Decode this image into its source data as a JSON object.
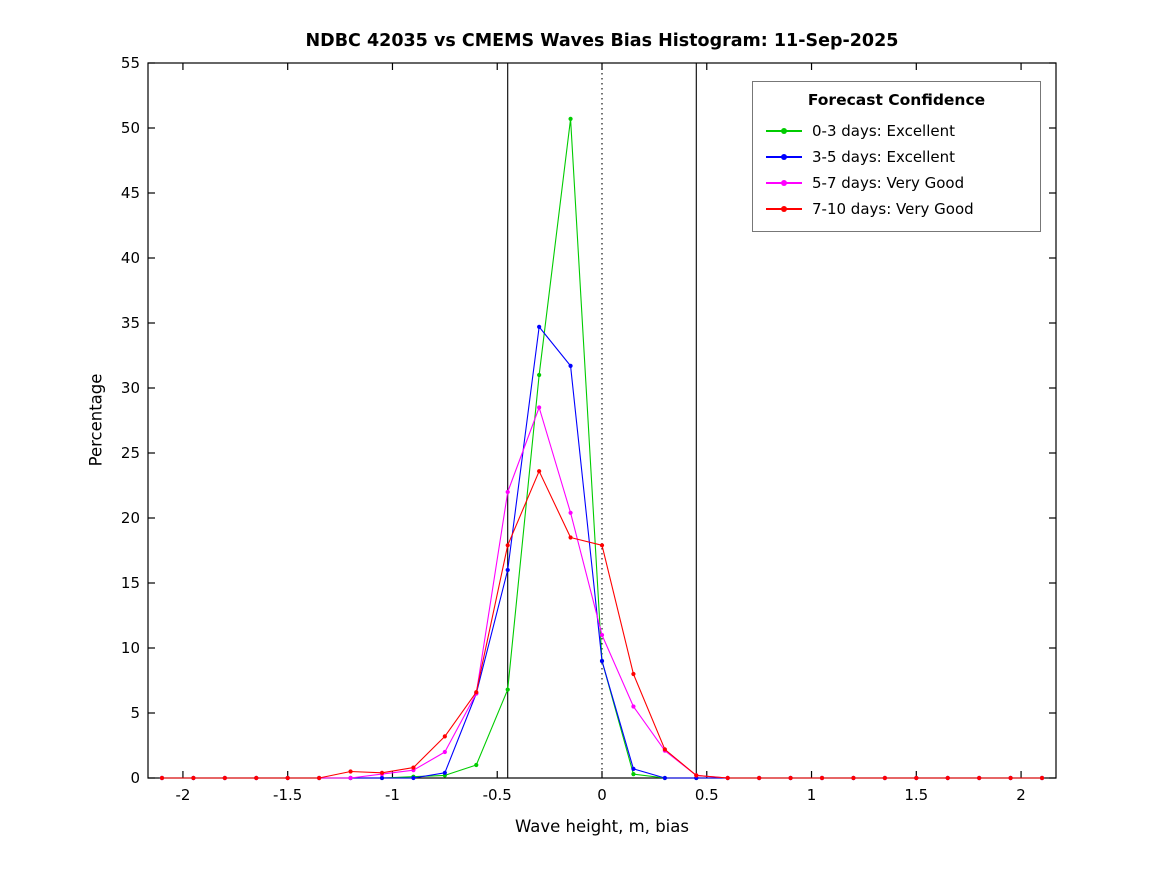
{
  "figure": {
    "title": "NDBC 42035 vs CMEMS Waves Bias Histogram: 11-Sep-2025",
    "xlabel": "Wave height, m, bias",
    "ylabel": "Percentage"
  },
  "legend": {
    "title": "Forecast Confidence",
    "position": "northeast"
  },
  "chart_data": {
    "type": "line",
    "title": "NDBC 42035 vs CMEMS Waves Bias Histogram: 11-Sep-2025",
    "xlabel": "Wave height, m, bias",
    "ylabel": "Percentage",
    "xlim": [
      -2.1667,
      2.1667
    ],
    "ylim": [
      0,
      55
    ],
    "grid": false,
    "legend_title": "Forecast Confidence",
    "legend_position": "northeast",
    "xticks": [
      {
        "v": -2,
        "label": "-2"
      },
      {
        "v": -1.5,
        "label": "-1.5"
      },
      {
        "v": -1,
        "label": "-1"
      },
      {
        "v": -0.5,
        "label": "-0.5"
      },
      {
        "v": 0,
        "label": "0"
      },
      {
        "v": 0.5,
        "label": "0.5"
      },
      {
        "v": 1,
        "label": "1"
      },
      {
        "v": 1.5,
        "label": "1.5"
      },
      {
        "v": 2,
        "label": "2"
      }
    ],
    "yticks": [
      {
        "v": 0,
        "label": "0"
      },
      {
        "v": 5,
        "label": "5"
      },
      {
        "v": 10,
        "label": "10"
      },
      {
        "v": 15,
        "label": "15"
      },
      {
        "v": 20,
        "label": "20"
      },
      {
        "v": 25,
        "label": "25"
      },
      {
        "v": 30,
        "label": "30"
      },
      {
        "v": 35,
        "label": "35"
      },
      {
        "v": 40,
        "label": "40"
      },
      {
        "v": 45,
        "label": "45"
      },
      {
        "v": 50,
        "label": "50"
      },
      {
        "v": 55,
        "label": "55"
      }
    ],
    "x": [
      -2.1,
      -1.95,
      -1.8,
      -1.65,
      -1.5,
      -1.35,
      -1.2,
      -1.05,
      -0.9,
      -0.75,
      -0.6,
      -0.45,
      -0.3,
      -0.15,
      0,
      0.15,
      0.3,
      0.45,
      0.6,
      0.75,
      0.9,
      1.05,
      1.2,
      1.35,
      1.5,
      1.65,
      1.8,
      1.95,
      2.1
    ],
    "series": [
      {
        "name": "0-3 days: Excellent",
        "color": "#00cc00",
        "values": [
          0,
          0,
          0,
          0,
          0,
          0,
          0,
          0,
          0.1,
          0.2,
          1.0,
          6.8,
          31.0,
          50.7,
          9.0,
          0.3,
          0,
          0,
          0,
          0,
          0,
          0,
          0,
          0,
          0,
          0,
          0,
          0,
          0
        ]
      },
      {
        "name": "3-5 days: Excellent",
        "color": "#0000ff",
        "values": [
          0,
          0,
          0,
          0,
          0,
          0,
          0,
          0,
          0,
          0.4,
          6.5,
          16.0,
          34.7,
          31.7,
          9.0,
          0.7,
          0,
          0,
          0,
          0,
          0,
          0,
          0,
          0,
          0,
          0,
          0,
          0,
          0
        ]
      },
      {
        "name": "5-7 days: Very Good",
        "color": "#ff00ff",
        "values": [
          0,
          0,
          0,
          0,
          0,
          0,
          0,
          0.3,
          0.6,
          2.0,
          6.5,
          22.0,
          28.5,
          20.4,
          11.0,
          5.5,
          2.1,
          0.2,
          0,
          0,
          0,
          0,
          0,
          0,
          0,
          0,
          0,
          0,
          0
        ]
      },
      {
        "name": "7-10 days: Very Good",
        "color": "#ff0000",
        "values": [
          0,
          0,
          0,
          0,
          0,
          0,
          0.5,
          0.4,
          0.8,
          3.2,
          6.6,
          17.9,
          23.6,
          18.5,
          17.9,
          8.0,
          2.2,
          0.2,
          0,
          0,
          0,
          0,
          0,
          0,
          0,
          0,
          0,
          0,
          0
        ]
      }
    ],
    "reference_lines": [
      {
        "x": -0.45,
        "style": "solid",
        "color": "#000000"
      },
      {
        "x": 0,
        "style": "dotted",
        "color": "#000000"
      },
      {
        "x": 0.45,
        "style": "solid",
        "color": "#000000"
      }
    ]
  }
}
